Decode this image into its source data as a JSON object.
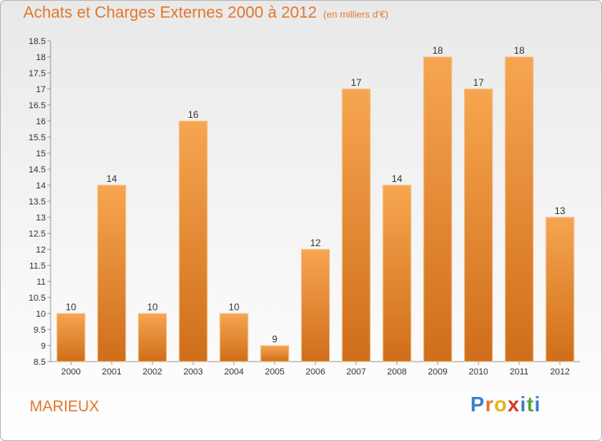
{
  "title": "Achats et Charges Externes 2000 à 2012",
  "unit_label": "(en milliers d'€)",
  "town": "MARIEUX",
  "brand": {
    "letters": [
      "P",
      "r",
      "o",
      "x",
      "i",
      "t",
      "i"
    ],
    "colors": [
      "#3b7fd0",
      "#e2772d",
      "#e8b21f",
      "#d23b2b",
      "#3b7fd0",
      "#5aa33b",
      "#3b7fd0"
    ]
  },
  "colors": {
    "bar_top": "#f7a550",
    "bar_bottom": "#cf6e1a",
    "title": "#e2772d"
  },
  "chart_data": {
    "type": "bar",
    "categories": [
      "2000",
      "2001",
      "2002",
      "2003",
      "2004",
      "2005",
      "2006",
      "2007",
      "2008",
      "2009",
      "2010",
      "2011",
      "2012"
    ],
    "values": [
      10,
      14,
      10,
      16,
      10,
      9,
      12,
      17,
      14,
      18,
      17,
      18,
      13
    ],
    "ylim": [
      8.5,
      18.5
    ],
    "yticks": [
      "8.5",
      "9",
      "9.5",
      "10",
      "10.5",
      "11",
      "11.5",
      "12",
      "12.5",
      "13",
      "13.5",
      "14",
      "14.5",
      "15",
      "15.5",
      "16",
      "16.5",
      "17",
      "17.5",
      "18",
      "18.5"
    ],
    "grid": false,
    "legend": "none"
  }
}
